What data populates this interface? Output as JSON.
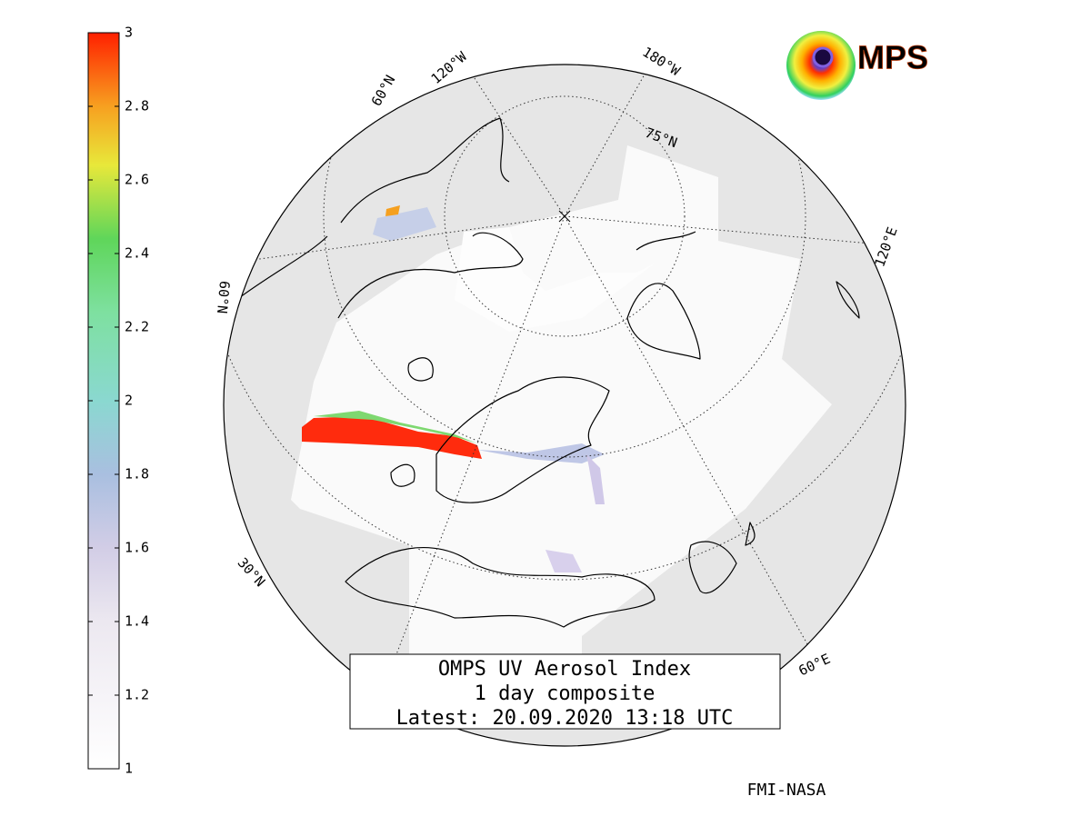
{
  "colorbar": {
    "lim": [
      1,
      3
    ],
    "ticks": [
      1,
      1.2,
      1.4,
      1.6,
      1.8,
      2,
      2.2,
      2.4,
      2.6,
      2.8,
      3
    ]
  },
  "grid_labels": [
    "60°N",
    "120°W",
    "180°W",
    "75°N",
    "120°E",
    "60°E",
    "30°N",
    "60°N"
  ],
  "title_lines": [
    "OMPS UV Aerosol Index",
    "1 day composite",
    "Latest: 20.09.2020 13:18 UTC"
  ],
  "logo_text": "MPS",
  "credit": "FMI-NASA"
}
